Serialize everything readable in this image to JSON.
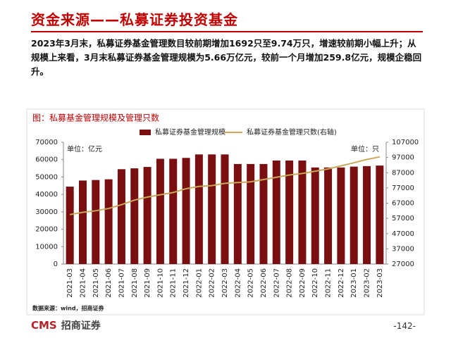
{
  "header": {
    "title": "资金来源——私募证券投资基金"
  },
  "body": {
    "text": "2023年3月末，私募证券基金管理数目较前期增加1692只至9.74万只，增速较前期小幅上升；从规模上来看，3月末私募证券基金管理规模为5.66万亿元，较前一个月增加259.8亿元，规模企稳回升。"
  },
  "chart_data": {
    "type": "bar-line",
    "title": "图：私募基金管理规模及管理只数",
    "categories": [
      "2021-03",
      "2021-04",
      "2021-05",
      "2021-06",
      "2021-07",
      "2021-08",
      "2021-09",
      "2021-10",
      "2021-11",
      "2021-12",
      "2022-01",
      "2022-02",
      "2022-03",
      "2022-04",
      "2022-05",
      "2022-06",
      "2022-07",
      "2022-08",
      "2022-09",
      "2022-10",
      "2022-11",
      "2022-12",
      "2023-01",
      "2023-02",
      "2023-03"
    ],
    "series": [
      {
        "name": "私募证券基金管理规模",
        "type": "bar",
        "color": "#7a0f12",
        "values": [
          44500,
          48000,
          48300,
          48700,
          54500,
          55000,
          55800,
          60500,
          60500,
          61000,
          63000,
          63000,
          63000,
          57500,
          57500,
          57500,
          59500,
          59500,
          59500,
          55500,
          55500,
          55500,
          56000,
          56300,
          56600
        ]
      },
      {
        "name": "私募证券基金管理只数(右轴)",
        "type": "line",
        "axis": "y2",
        "color": "#c9a85b",
        "values": [
          59500,
          61000,
          62000,
          63500,
          66000,
          69000,
          71000,
          72500,
          74000,
          76500,
          78000,
          78500,
          80000,
          80500,
          81000,
          82500,
          84000,
          85500,
          86500,
          88000,
          89500,
          91500,
          93500,
          95700,
          97400
        ]
      }
    ],
    "ylim": [
      0,
      70000
    ],
    "yticks": [
      0,
      10000,
      20000,
      30000,
      40000,
      50000,
      60000,
      70000
    ],
    "y2lim": [
      27000,
      107000
    ],
    "y2ticks": [
      27000,
      37000,
      47000,
      57000,
      67000,
      77000,
      87000,
      97000,
      107000
    ],
    "y_unit": "单位：亿元",
    "y2_unit": "单位：只",
    "source": "数据来源：wind，招商证券"
  },
  "footer": {
    "logo": "CMS",
    "logo_name": "招商证券",
    "page": "-142-"
  }
}
